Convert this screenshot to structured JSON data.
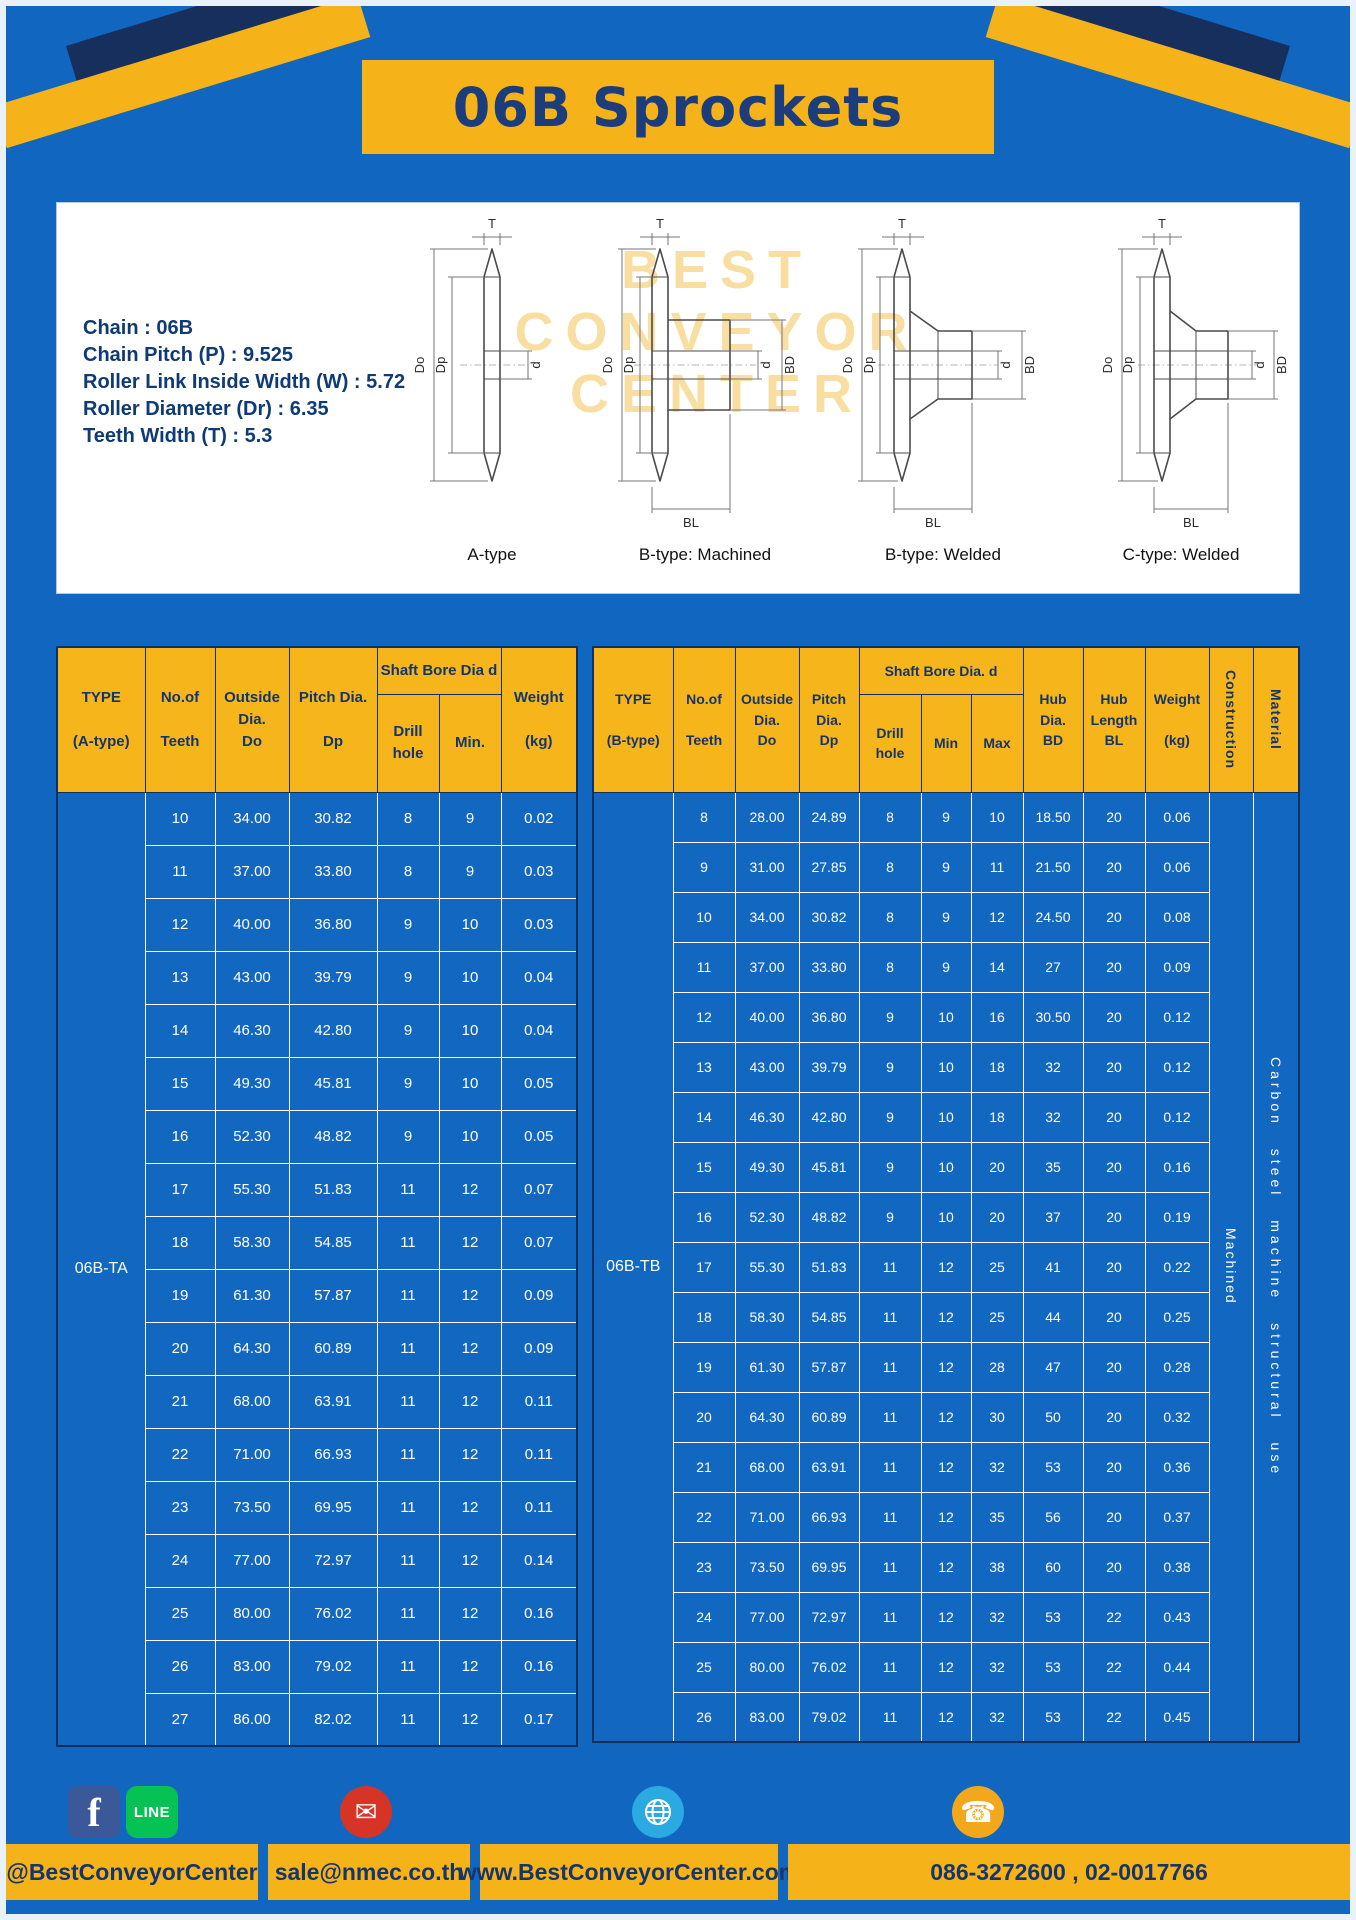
{
  "title": "06B Sprockets",
  "specs": {
    "lines": [
      "Chain  :  06B",
      "Chain Pitch (P)  :  9.525",
      "Roller Link Inside Width (W)  :  5.72",
      "Roller Diameter (Dr)  :  6.35",
      "Teeth Width (T)  :  5.3"
    ]
  },
  "diagram": {
    "watermark_lines": [
      "BEST",
      "CONVEYOR",
      "CENTER"
    ],
    "captions": [
      "A-type",
      "B-type: Machined",
      "B-type: Welded",
      "C-type: Welded"
    ],
    "labels": {
      "T": "T",
      "Do": "Do",
      "Dp": "Dp",
      "d": "d",
      "BD": "BD",
      "BL": "BL"
    }
  },
  "table_a": {
    "type_label": "06B-TA",
    "headers": {
      "type": "TYPE\n\n(A-type)",
      "teeth": "No.of\n\nTeeth",
      "outside": "Outside\nDia.\nDo",
      "pitch": "Pitch Dia.\n\nDp",
      "bore_group": "Shaft Bore Dia d",
      "drill": "Drill hole",
      "min": "Min.",
      "weight": "Weight\n\n(kg)"
    },
    "rows": [
      [
        "10",
        "34.00",
        "30.82",
        "8",
        "9",
        "0.02"
      ],
      [
        "11",
        "37.00",
        "33.80",
        "8",
        "9",
        "0.03"
      ],
      [
        "12",
        "40.00",
        "36.80",
        "9",
        "10",
        "0.03"
      ],
      [
        "13",
        "43.00",
        "39.79",
        "9",
        "10",
        "0.04"
      ],
      [
        "14",
        "46.30",
        "42.80",
        "9",
        "10",
        "0.04"
      ],
      [
        "15",
        "49.30",
        "45.81",
        "9",
        "10",
        "0.05"
      ],
      [
        "16",
        "52.30",
        "48.82",
        "9",
        "10",
        "0.05"
      ],
      [
        "17",
        "55.30",
        "51.83",
        "11",
        "12",
        "0.07"
      ],
      [
        "18",
        "58.30",
        "54.85",
        "11",
        "12",
        "0.07"
      ],
      [
        "19",
        "61.30",
        "57.87",
        "11",
        "12",
        "0.09"
      ],
      [
        "20",
        "64.30",
        "60.89",
        "11",
        "12",
        "0.09"
      ],
      [
        "21",
        "68.00",
        "63.91",
        "11",
        "12",
        "0.11"
      ],
      [
        "22",
        "71.00",
        "66.93",
        "11",
        "12",
        "0.11"
      ],
      [
        "23",
        "73.50",
        "69.95",
        "11",
        "12",
        "0.11"
      ],
      [
        "24",
        "77.00",
        "72.97",
        "11",
        "12",
        "0.14"
      ],
      [
        "25",
        "80.00",
        "76.02",
        "11",
        "12",
        "0.16"
      ],
      [
        "26",
        "83.00",
        "79.02",
        "11",
        "12",
        "0.16"
      ],
      [
        "27",
        "86.00",
        "82.02",
        "11",
        "12",
        "0.17"
      ]
    ]
  },
  "table_b": {
    "type_label": "06B-TB",
    "construction": "Machined",
    "material": "Carbon steel machine structural use",
    "headers": {
      "type": "TYPE\n\n(B-type)",
      "teeth": "No.of\n\nTeeth",
      "outside": "Outside\nDia.\nDo",
      "pitch": "Pitch\nDia.\nDp",
      "bore_group": "Shaft Bore Dia.  d",
      "drill": "Drill hole",
      "min": "Min",
      "max": "Max",
      "hub_dia": "Hub\nDia.\nBD",
      "hub_len": "Hub\nLength\nBL",
      "weight": "Weight\n\n(kg)",
      "construction": "Construction",
      "material": "Material"
    },
    "rows": [
      [
        "8",
        "28.00",
        "24.89",
        "8",
        "9",
        "10",
        "18.50",
        "20",
        "0.06"
      ],
      [
        "9",
        "31.00",
        "27.85",
        "8",
        "9",
        "11",
        "21.50",
        "20",
        "0.06"
      ],
      [
        "10",
        "34.00",
        "30.82",
        "8",
        "9",
        "12",
        "24.50",
        "20",
        "0.08"
      ],
      [
        "11",
        "37.00",
        "33.80",
        "8",
        "9",
        "14",
        "27",
        "20",
        "0.09"
      ],
      [
        "12",
        "40.00",
        "36.80",
        "9",
        "10",
        "16",
        "30.50",
        "20",
        "0.12"
      ],
      [
        "13",
        "43.00",
        "39.79",
        "9",
        "10",
        "18",
        "32",
        "20",
        "0.12"
      ],
      [
        "14",
        "46.30",
        "42.80",
        "9",
        "10",
        "18",
        "32",
        "20",
        "0.12"
      ],
      [
        "15",
        "49.30",
        "45.81",
        "9",
        "10",
        "20",
        "35",
        "20",
        "0.16"
      ],
      [
        "16",
        "52.30",
        "48.82",
        "9",
        "10",
        "20",
        "37",
        "20",
        "0.19"
      ],
      [
        "17",
        "55.30",
        "51.83",
        "11",
        "12",
        "25",
        "41",
        "20",
        "0.22"
      ],
      [
        "18",
        "58.30",
        "54.85",
        "11",
        "12",
        "25",
        "44",
        "20",
        "0.25"
      ],
      [
        "19",
        "61.30",
        "57.87",
        "11",
        "12",
        "28",
        "47",
        "20",
        "0.28"
      ],
      [
        "20",
        "64.30",
        "60.89",
        "11",
        "12",
        "30",
        "50",
        "20",
        "0.32"
      ],
      [
        "21",
        "68.00",
        "63.91",
        "11",
        "12",
        "32",
        "53",
        "20",
        "0.36"
      ],
      [
        "22",
        "71.00",
        "66.93",
        "11",
        "12",
        "35",
        "56",
        "20",
        "0.37"
      ],
      [
        "23",
        "73.50",
        "69.95",
        "11",
        "12",
        "38",
        "60",
        "20",
        "0.38"
      ],
      [
        "24",
        "77.00",
        "72.97",
        "11",
        "12",
        "32",
        "53",
        "22",
        "0.43"
      ],
      [
        "25",
        "80.00",
        "76.02",
        "11",
        "12",
        "32",
        "53",
        "22",
        "0.44"
      ],
      [
        "26",
        "83.00",
        "79.02",
        "11",
        "12",
        "32",
        "53",
        "22",
        "0.45"
      ]
    ]
  },
  "footer": {
    "facebook_letter": "f",
    "line_label": "LINE",
    "email_glyph": "✉",
    "phone_glyph": "☎",
    "items": [
      {
        "icon": "facebook-line",
        "label": "@BestConveyorCenter"
      },
      {
        "icon": "email",
        "label": "sale@nmec.co.th"
      },
      {
        "icon": "globe",
        "label": "www.BestConveyorCenter.com"
      },
      {
        "icon": "phone",
        "label": "086-3272600 , 02-0017766"
      }
    ]
  },
  "colors": {
    "page_blue": "#1166bf",
    "accent_yellow": "#f6b319",
    "navy": "#172f5c",
    "cell_blue": "#1268c0"
  }
}
